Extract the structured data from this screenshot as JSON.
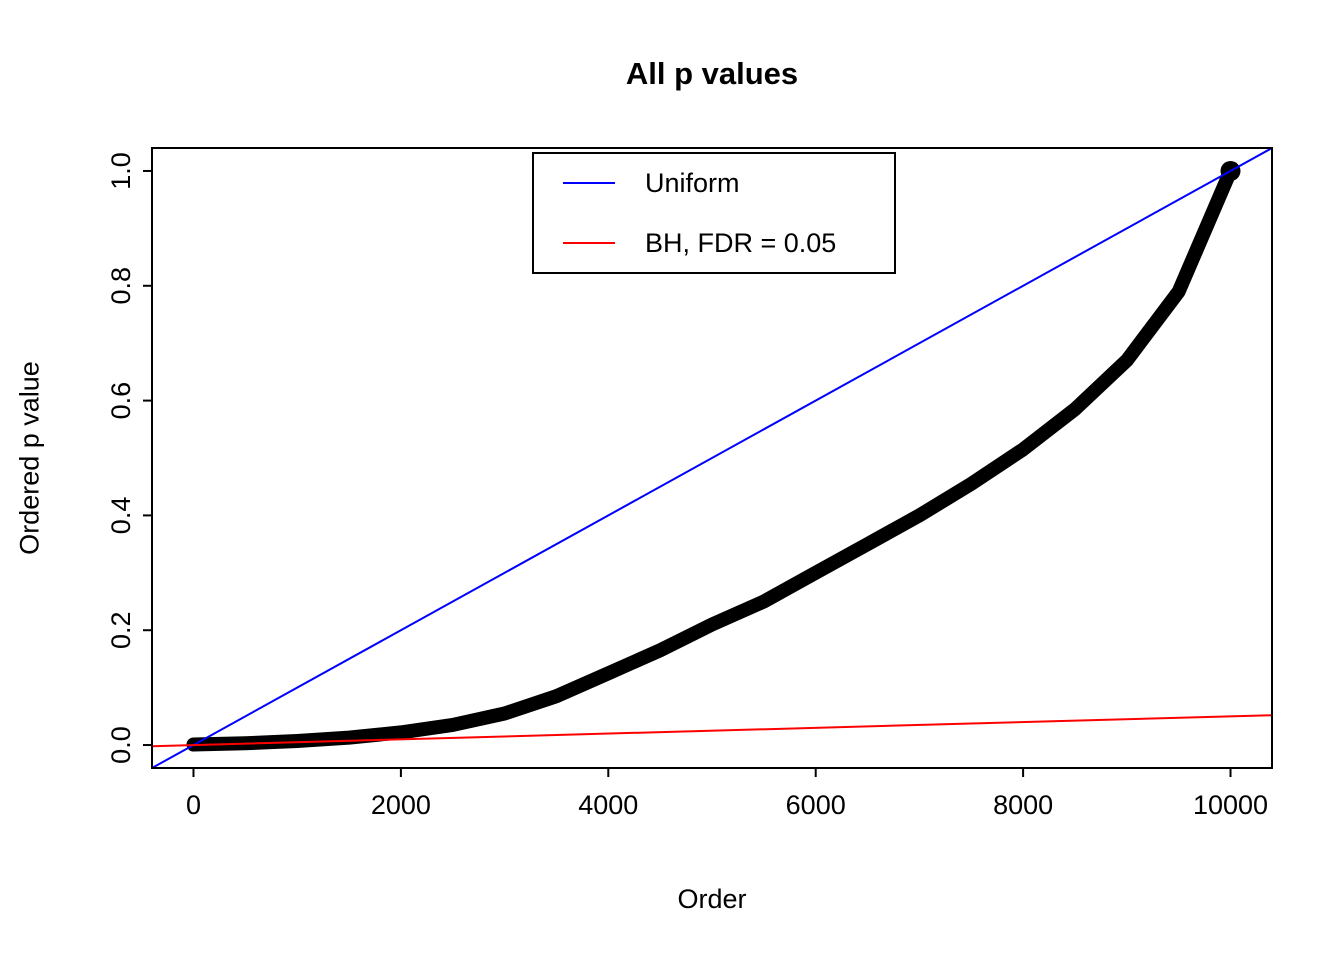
{
  "chart_data": {
    "type": "scatter",
    "title": "All p values",
    "xlabel": "Order",
    "ylabel": "Ordered p value",
    "xlim": [
      -400,
      10400
    ],
    "ylim": [
      -0.04,
      1.04
    ],
    "grid": false,
    "x_ticks": [
      0,
      2000,
      4000,
      6000,
      8000,
      10000
    ],
    "x_tick_labels": [
      "0",
      "2000",
      "4000",
      "6000",
      "8000",
      "10000"
    ],
    "y_ticks": [
      0.0,
      0.2,
      0.4,
      0.6,
      0.8,
      1.0
    ],
    "y_tick_labels": [
      "0.0",
      "0.2",
      "0.4",
      "0.6",
      "0.8",
      "1.0"
    ],
    "legend": {
      "position": "top",
      "items": [
        {
          "label": "Uniform",
          "color": "#0000FF"
        },
        {
          "label": "BH, FDR = 0.05",
          "color": "#FF0000"
        }
      ]
    },
    "series": [
      {
        "name": "ordered-p-values",
        "type": "curve",
        "color": "#000000",
        "x": [
          0,
          500,
          1000,
          1500,
          2000,
          2500,
          3000,
          3500,
          4000,
          4500,
          5000,
          5500,
          6000,
          6500,
          7000,
          7500,
          8000,
          8500,
          9000,
          9500,
          10000
        ],
        "y": [
          0.001,
          0.003,
          0.007,
          0.013,
          0.022,
          0.035,
          0.055,
          0.085,
          0.125,
          0.165,
          0.21,
          0.25,
          0.3,
          0.35,
          0.4,
          0.455,
          0.515,
          0.585,
          0.67,
          0.79,
          1.0
        ]
      },
      {
        "name": "Uniform",
        "type": "abline",
        "color": "#0000FF",
        "intercept": 0,
        "slope": 0.0001
      },
      {
        "name": "BH, FDR = 0.05",
        "type": "abline",
        "color": "#FF0000",
        "intercept": 0,
        "slope": 5e-06
      }
    ]
  }
}
